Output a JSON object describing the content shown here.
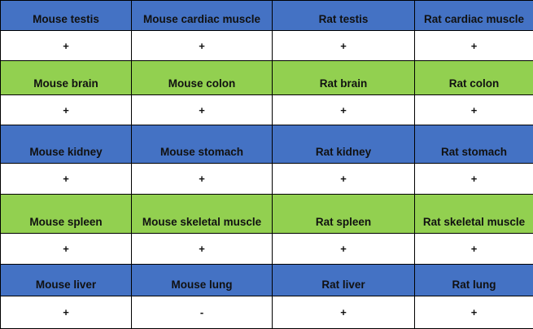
{
  "colors": {
    "blue": "#4472c4",
    "green": "#92d050",
    "white": "#ffffff",
    "border": "#000000"
  },
  "rows": [
    {
      "kind": "header",
      "color": "blue",
      "height": 37,
      "cells": [
        "Mouse testis",
        "Mouse cardiac muscle",
        "Rat testis",
        "Rat cardiac muscle"
      ]
    },
    {
      "kind": "value",
      "height": 37,
      "cells": [
        "+",
        "+",
        "+",
        "+"
      ]
    },
    {
      "kind": "header",
      "color": "green",
      "height": 42,
      "cells": [
        "Mouse brain",
        "Mouse colon",
        "Rat brain",
        "Rat colon"
      ]
    },
    {
      "kind": "value",
      "height": 37,
      "cells": [
        "+",
        "+",
        "+",
        "+"
      ]
    },
    {
      "kind": "header",
      "color": "blue",
      "height": 47,
      "cells": [
        "Mouse kidney",
        "Mouse stomach",
        "Rat kidney",
        "Rat stomach"
      ]
    },
    {
      "kind": "value",
      "height": 38,
      "cells": [
        "+",
        "+",
        "+",
        "+"
      ]
    },
    {
      "kind": "header",
      "color": "green",
      "height": 48,
      "cells": [
        "Mouse spleen",
        "Mouse skeletal muscle",
        "Rat spleen",
        "Rat skeletal muscle"
      ]
    },
    {
      "kind": "value",
      "height": 38,
      "cells": [
        "+",
        "+",
        "+",
        "+"
      ]
    },
    {
      "kind": "header",
      "color": "blue",
      "height": 39,
      "cells": [
        "Mouse liver",
        "Mouse lung",
        "Rat liver",
        "Rat lung"
      ]
    },
    {
      "kind": "value",
      "height": 40,
      "cells": [
        "+",
        "-",
        "+",
        "+"
      ]
    }
  ]
}
